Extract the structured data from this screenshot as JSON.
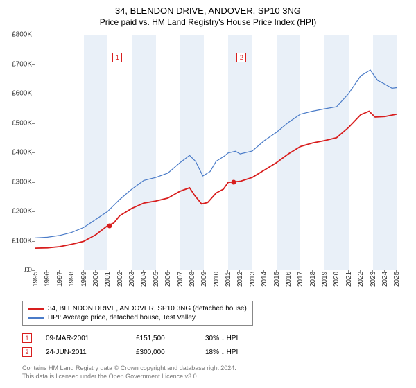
{
  "title": "34, BLENDON DRIVE, ANDOVER, SP10 3NG",
  "subtitle": "Price paid vs. HM Land Registry's House Price Index (HPI)",
  "chart": {
    "type": "line",
    "background_color": "#ffffff",
    "band_color": "#e9f0f8",
    "axis_color": "#888888",
    "label_fontsize": 10,
    "title_fontsize": 13,
    "x": {
      "min": 1995,
      "max": 2025.5,
      "ticks": [
        1995,
        1996,
        1997,
        1998,
        1999,
        2000,
        2001,
        2002,
        2003,
        2004,
        2005,
        2006,
        2007,
        2008,
        2009,
        2010,
        2011,
        2012,
        2013,
        2014,
        2015,
        2016,
        2017,
        2018,
        2019,
        2020,
        2021,
        2022,
        2023,
        2024,
        2025
      ]
    },
    "y": {
      "min": 0,
      "max": 800000,
      "ticks": [
        0,
        100000,
        200000,
        300000,
        400000,
        500000,
        600000,
        700000,
        800000
      ],
      "tick_labels": [
        "£0",
        "£100K",
        "£200K",
        "£300K",
        "£400K",
        "£500K",
        "£600K",
        "£700K",
        "£800K"
      ]
    },
    "bands": [
      {
        "from": 1999,
        "to": 2001
      },
      {
        "from": 2003,
        "to": 2005
      },
      {
        "from": 2007,
        "to": 2009
      },
      {
        "from": 2011,
        "to": 2013
      },
      {
        "from": 2015,
        "to": 2017
      },
      {
        "from": 2019,
        "to": 2021
      },
      {
        "from": 2023,
        "to": 2025
      }
    ],
    "series": [
      {
        "name": "34, BLENDON DRIVE, ANDOVER, SP10 3NG (detached house)",
        "color": "#d81e1e",
        "width": 1.8,
        "data": [
          [
            1995,
            75000
          ],
          [
            1996,
            76000
          ],
          [
            1997,
            80000
          ],
          [
            1998,
            88000
          ],
          [
            1999,
            98000
          ],
          [
            2000,
            120000
          ],
          [
            2001,
            151500
          ],
          [
            2001.5,
            160000
          ],
          [
            2002,
            185000
          ],
          [
            2003,
            210000
          ],
          [
            2004,
            228000
          ],
          [
            2005,
            235000
          ],
          [
            2006,
            245000
          ],
          [
            2007,
            268000
          ],
          [
            2007.8,
            280000
          ],
          [
            2008.2,
            255000
          ],
          [
            2008.8,
            225000
          ],
          [
            2009.3,
            230000
          ],
          [
            2010,
            262000
          ],
          [
            2010.6,
            275000
          ],
          [
            2011,
            298000
          ],
          [
            2011.5,
            300000
          ],
          [
            2012,
            302000
          ],
          [
            2013,
            315000
          ],
          [
            2014,
            340000
          ],
          [
            2015,
            365000
          ],
          [
            2016,
            395000
          ],
          [
            2017,
            420000
          ],
          [
            2018,
            432000
          ],
          [
            2019,
            440000
          ],
          [
            2020,
            450000
          ],
          [
            2021,
            485000
          ],
          [
            2022,
            528000
          ],
          [
            2022.7,
            540000
          ],
          [
            2023.2,
            520000
          ],
          [
            2024,
            522000
          ],
          [
            2025,
            530000
          ]
        ]
      },
      {
        "name": "HPI: Average price, detached house, Test Valley",
        "color": "#4a7bc8",
        "width": 1.2,
        "data": [
          [
            1995,
            110000
          ],
          [
            1996,
            112000
          ],
          [
            1997,
            118000
          ],
          [
            1998,
            128000
          ],
          [
            1999,
            145000
          ],
          [
            2000,
            172000
          ],
          [
            2001,
            200000
          ],
          [
            2002,
            240000
          ],
          [
            2003,
            275000
          ],
          [
            2004,
            305000
          ],
          [
            2005,
            315000
          ],
          [
            2006,
            330000
          ],
          [
            2007,
            365000
          ],
          [
            2007.8,
            390000
          ],
          [
            2008.3,
            370000
          ],
          [
            2008.9,
            320000
          ],
          [
            2009.5,
            335000
          ],
          [
            2010,
            370000
          ],
          [
            2010.7,
            388000
          ],
          [
            2011,
            398000
          ],
          [
            2011.6,
            404000
          ],
          [
            2012,
            395000
          ],
          [
            2013,
            405000
          ],
          [
            2014,
            440000
          ],
          [
            2015,
            468000
          ],
          [
            2016,
            502000
          ],
          [
            2017,
            530000
          ],
          [
            2018,
            540000
          ],
          [
            2019,
            548000
          ],
          [
            2020,
            555000
          ],
          [
            2021,
            600000
          ],
          [
            2022,
            660000
          ],
          [
            2022.8,
            680000
          ],
          [
            2023.4,
            645000
          ],
          [
            2024,
            632000
          ],
          [
            2024.6,
            618000
          ],
          [
            2025,
            620000
          ]
        ]
      }
    ],
    "vlines": [
      {
        "x": 2001.18,
        "color": "#d81e1e"
      },
      {
        "x": 2011.48,
        "color": "#d81e1e"
      }
    ],
    "markers": [
      {
        "label": "1",
        "x": 2001.18,
        "y": 151500,
        "box_y": 740000,
        "color": "#d81e1e"
      },
      {
        "label": "2",
        "x": 2011.48,
        "y": 300000,
        "box_y": 740000,
        "color": "#d81e1e"
      }
    ]
  },
  "legend": {
    "items": [
      {
        "color": "#d81e1e",
        "label": "34, BLENDON DRIVE, ANDOVER, SP10 3NG (detached house)"
      },
      {
        "color": "#4a7bc8",
        "label": "HPI: Average price, detached house, Test Valley"
      }
    ]
  },
  "transactions": [
    {
      "num": "1",
      "date": "09-MAR-2001",
      "price": "£151,500",
      "pct": "30%",
      "arrow": "↓",
      "vs": "HPI",
      "color": "#d81e1e"
    },
    {
      "num": "2",
      "date": "24-JUN-2011",
      "price": "£300,000",
      "pct": "18%",
      "arrow": "↓",
      "vs": "HPI",
      "color": "#d81e1e"
    }
  ],
  "footer_line1": "Contains HM Land Registry data © Crown copyright and database right 2024.",
  "footer_line2": "This data is licensed under the Open Government Licence v3.0."
}
